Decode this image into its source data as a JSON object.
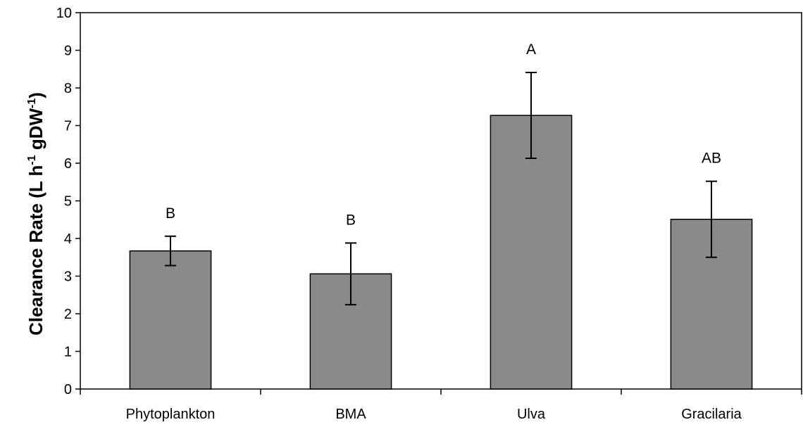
{
  "chart_data": {
    "type": "bar",
    "categories": [
      "Phytoplankton",
      "BMA",
      "Ulva",
      "Gracilaria"
    ],
    "values": [
      3.67,
      3.06,
      7.27,
      4.51
    ],
    "errors": [
      0.39,
      0.82,
      1.14,
      1.01
    ],
    "significance_labels": [
      "B",
      "B",
      "A",
      "AB"
    ],
    "ylabel_parts": {
      "base": "Clearance Rate (L h",
      "sup1": "-1",
      "mid": " gDW",
      "sup2": "-1",
      "end": ")"
    },
    "ylim": [
      0,
      10
    ],
    "yticks": [
      "0",
      "1",
      "2",
      "3",
      "4",
      "5",
      "6",
      "7",
      "8",
      "9",
      "10"
    ],
    "grid": false,
    "bar_color": "#8a8a8a",
    "bar_edge_color": "#000000"
  }
}
